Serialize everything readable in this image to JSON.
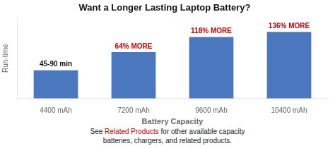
{
  "chart_data": {
    "type": "bar",
    "title": "Want a Longer Lasting Laptop Battery?",
    "categories": [
      "4400 mAh",
      "7200 mAh",
      "9600 mAh",
      "10400 mAh"
    ],
    "values": [
      1.0,
      1.64,
      2.18,
      2.36
    ],
    "color": "#4B77BE",
    "xlabel": "Battery Capacity",
    "ylabel": "Run-time",
    "ylim": [
      0,
      2.85
    ],
    "yticks": [],
    "grid": false,
    "tick_labels": "x",
    "annotations": [
      {
        "category": "4400 mAh",
        "text": "45-90 min",
        "color": "#111111"
      },
      {
        "category": "7200 mAh",
        "text": "64% MORE",
        "color": "#CC0000"
      },
      {
        "category": "9600 mAh",
        "text": "118% MORE",
        "color": "#CC0000"
      },
      {
        "category": "10400 mAh",
        "text": "136% MORE",
        "color": "#CC0000"
      }
    ],
    "footnote": [
      [
        {
          "text": "See ",
          "color": "#222222"
        },
        {
          "text": "Related Products",
          "color": "#CC0000"
        },
        {
          "text": " for other available capacity",
          "color": "#222222"
        }
      ],
      [
        {
          "text": "batteries, chargers, and related products.",
          "color": "#222222"
        }
      ]
    ]
  }
}
